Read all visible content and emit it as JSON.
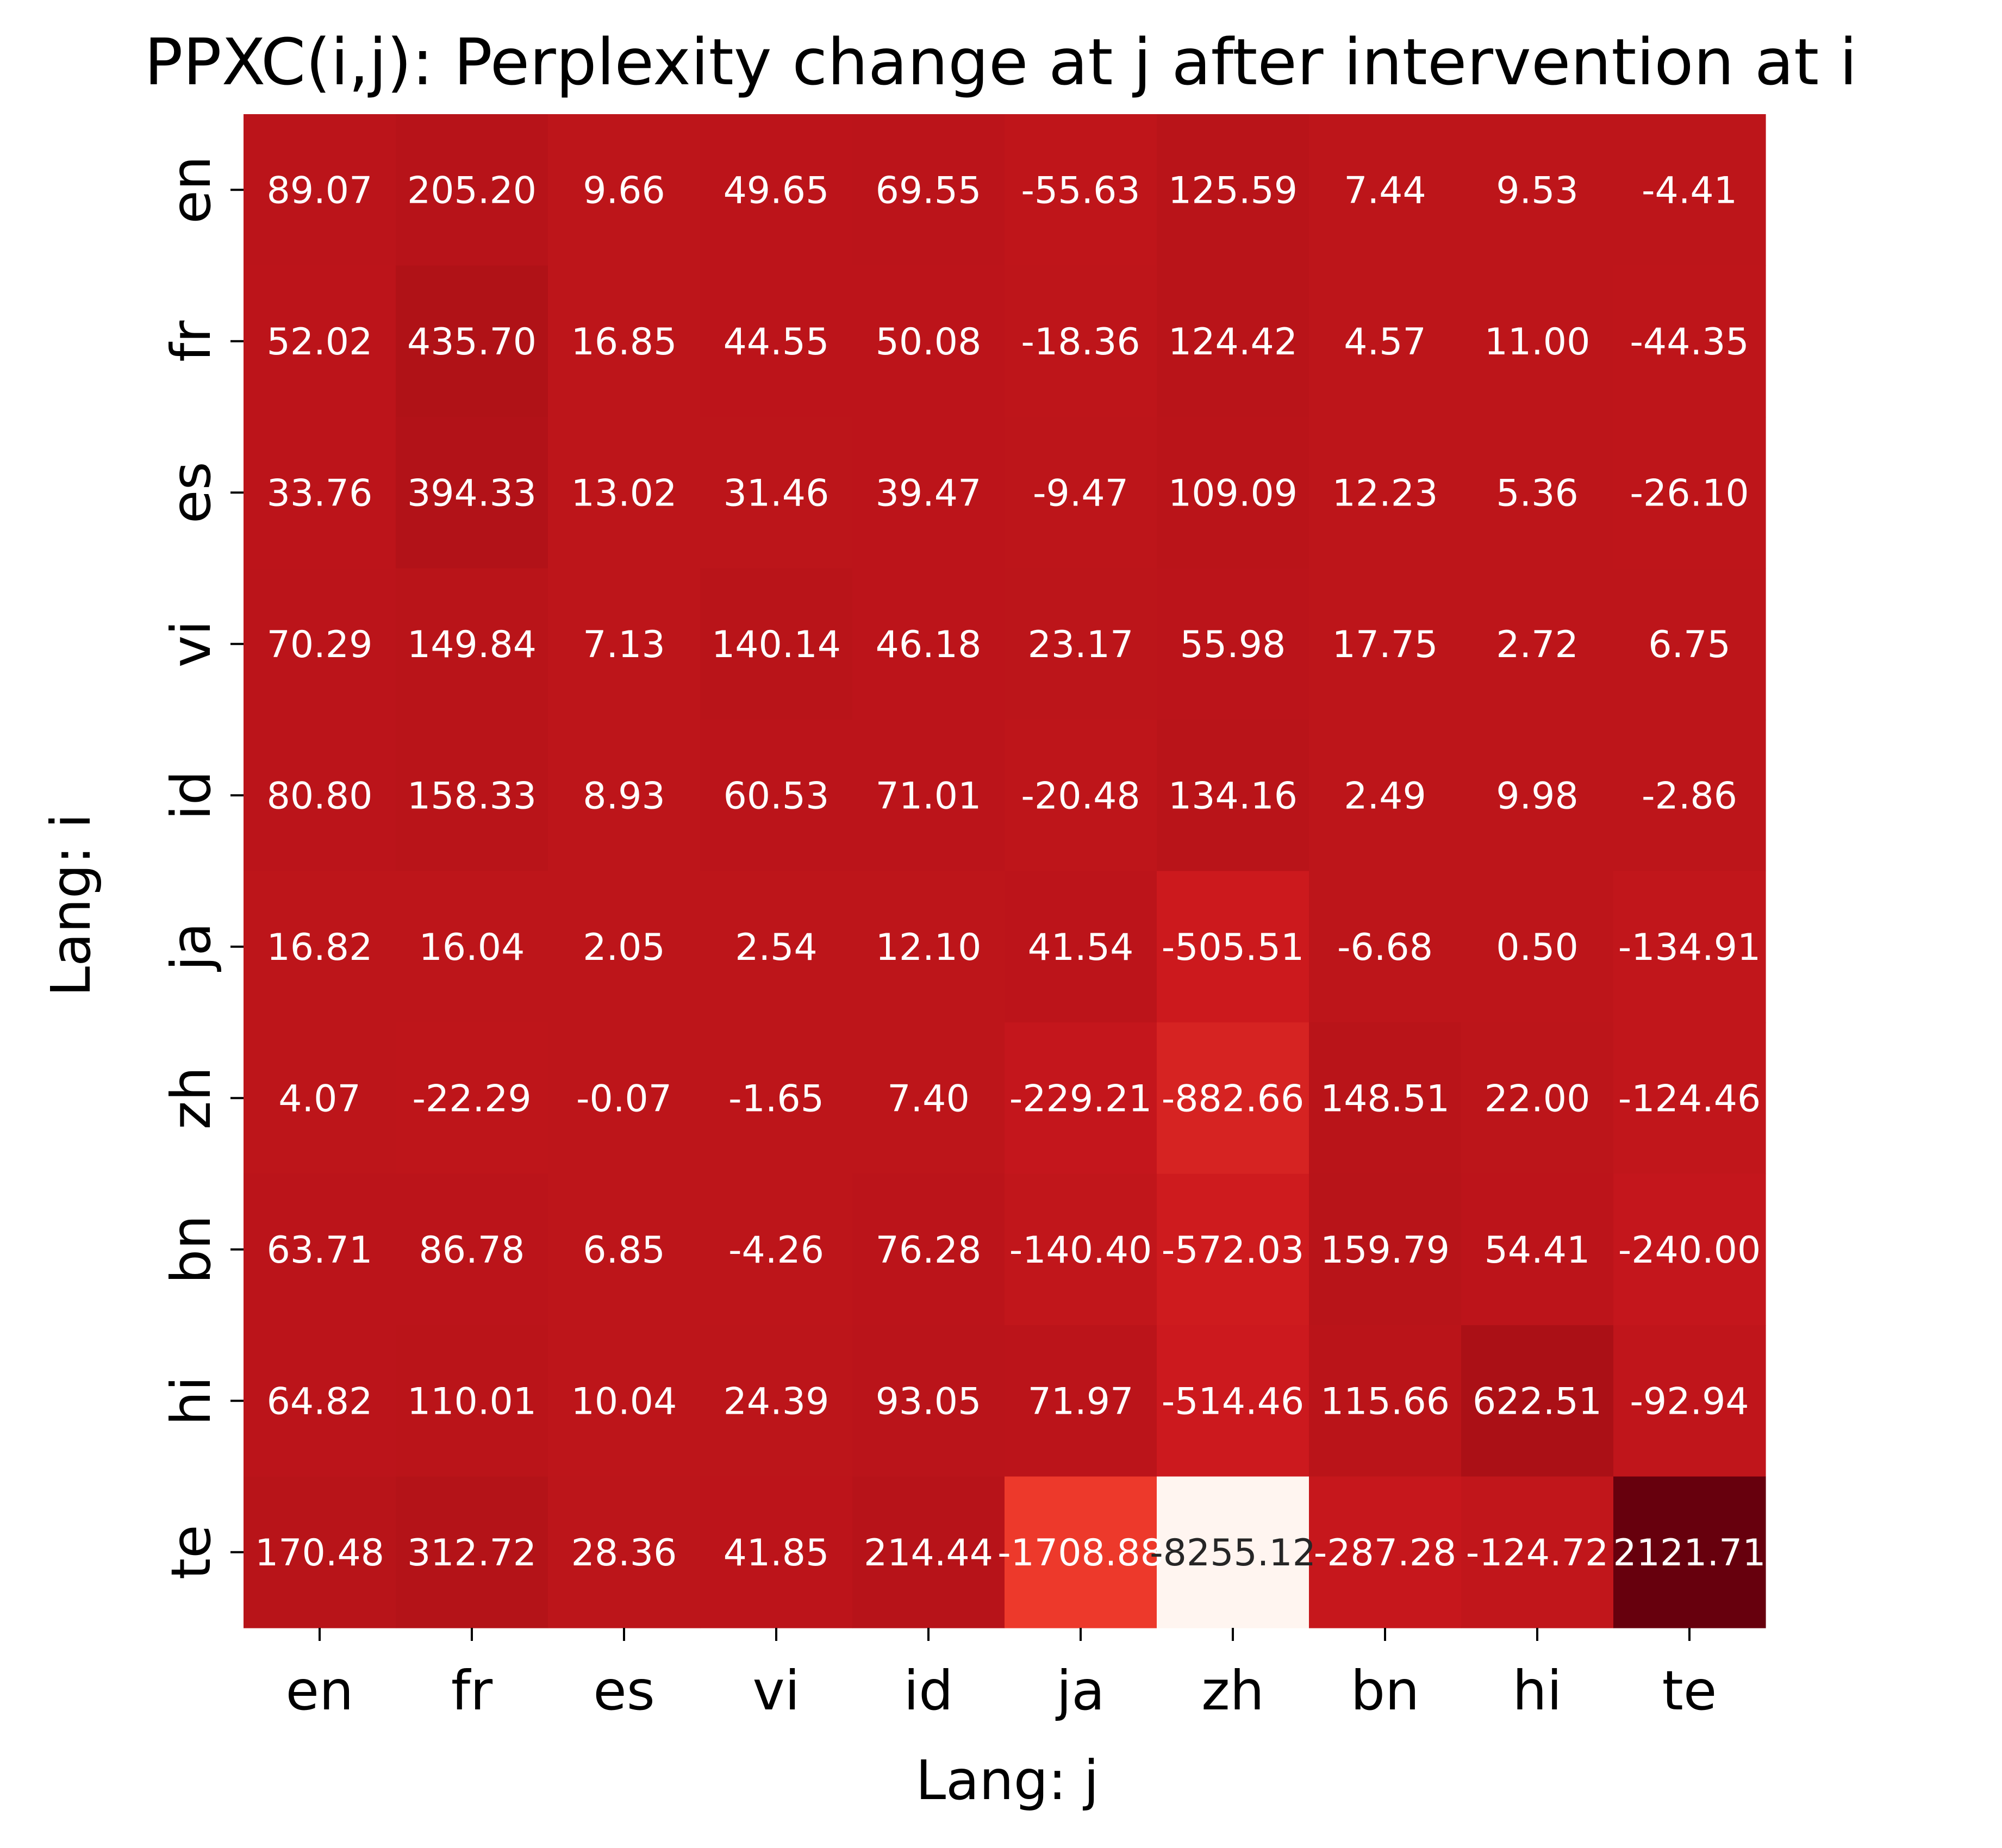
{
  "chart_data": {
    "type": "heatmap",
    "title": "PPXC(i,j): Perplexity change at j after intervention at i",
    "xlabel": "Lang: j",
    "ylabel": "Lang: i",
    "x_categories": [
      "en",
      "fr",
      "es",
      "vi",
      "id",
      "ja",
      "zh",
      "bn",
      "hi",
      "te"
    ],
    "y_categories": [
      "en",
      "fr",
      "es",
      "vi",
      "id",
      "ja",
      "zh",
      "bn",
      "hi",
      "te"
    ],
    "values": [
      [
        89.07,
        205.2,
        9.66,
        49.65,
        69.55,
        -55.63,
        125.59,
        7.44,
        9.53,
        -4.41
      ],
      [
        52.02,
        435.7,
        16.85,
        44.55,
        50.08,
        -18.36,
        124.42,
        4.57,
        11.0,
        -44.35
      ],
      [
        33.76,
        394.33,
        13.02,
        31.46,
        39.47,
        -9.47,
        109.09,
        12.23,
        5.36,
        -26.1
      ],
      [
        70.29,
        149.84,
        7.13,
        140.14,
        46.18,
        23.17,
        55.98,
        17.75,
        2.72,
        6.75
      ],
      [
        80.8,
        158.33,
        8.93,
        60.53,
        71.01,
        -20.48,
        134.16,
        2.49,
        9.98,
        -2.86
      ],
      [
        16.82,
        16.04,
        2.05,
        2.54,
        12.1,
        41.54,
        -505.51,
        -6.68,
        0.5,
        -134.91
      ],
      [
        4.07,
        -22.29,
        -0.07,
        -1.65,
        7.4,
        -229.21,
        -882.66,
        148.51,
        22.0,
        -124.46
      ],
      [
        63.71,
        86.78,
        6.85,
        -4.26,
        76.28,
        -140.4,
        -572.03,
        159.79,
        54.41,
        -240.0
      ],
      [
        64.82,
        110.01,
        10.04,
        24.39,
        93.05,
        71.97,
        -514.46,
        115.66,
        622.51,
        -92.94
      ],
      [
        170.48,
        312.72,
        28.36,
        41.85,
        214.44,
        -1708.88,
        -8255.12,
        -287.28,
        -124.72,
        2121.71
      ]
    ],
    "value_labels": [
      [
        "89.07",
        "205.20",
        "9.66",
        "49.65",
        "69.55",
        "-55.63",
        "125.59",
        "7.44",
        "9.53",
        "-4.41"
      ],
      [
        "52.02",
        "435.70",
        "16.85",
        "44.55",
        "50.08",
        "-18.36",
        "124.42",
        "4.57",
        "11.00",
        "-44.35"
      ],
      [
        "33.76",
        "394.33",
        "13.02",
        "31.46",
        "39.47",
        "-9.47",
        "109.09",
        "12.23",
        "5.36",
        "-26.10"
      ],
      [
        "70.29",
        "149.84",
        "7.13",
        "140.14",
        "46.18",
        "23.17",
        "55.98",
        "17.75",
        "2.72",
        "6.75"
      ],
      [
        "80.80",
        "158.33",
        "8.93",
        "60.53",
        "71.01",
        "-20.48",
        "134.16",
        "2.49",
        "9.98",
        "-2.86"
      ],
      [
        "16.82",
        "16.04",
        "2.05",
        "2.54",
        "12.10",
        "41.54",
        "-505.51",
        "-6.68",
        "0.50",
        "-134.91"
      ],
      [
        "4.07",
        "-22.29",
        "-0.07",
        "-1.65",
        "7.40",
        "-229.21",
        "-882.66",
        "148.51",
        "22.00",
        "-124.46"
      ],
      [
        "63.71",
        "86.78",
        "6.85",
        "-4.26",
        "76.28",
        "-140.40",
        "-572.03",
        "159.79",
        "54.41",
        "-240.00"
      ],
      [
        "64.82",
        "110.01",
        "10.04",
        "24.39",
        "93.05",
        "71.97",
        "-514.46",
        "115.66",
        "622.51",
        "-92.94"
      ],
      [
        "170.48",
        "312.72",
        "28.36",
        "41.85",
        "214.44",
        "-1708.88",
        "-8255.12",
        "-287.28",
        "-124.72",
        "2121.71"
      ]
    ],
    "colormap": "Reds",
    "vmin": -8255.12,
    "vmax": 2121.71,
    "colorbar": false,
    "grid": false,
    "annotation_text_colors": {
      "light": "#ffffff",
      "dark": "#262626"
    }
  }
}
